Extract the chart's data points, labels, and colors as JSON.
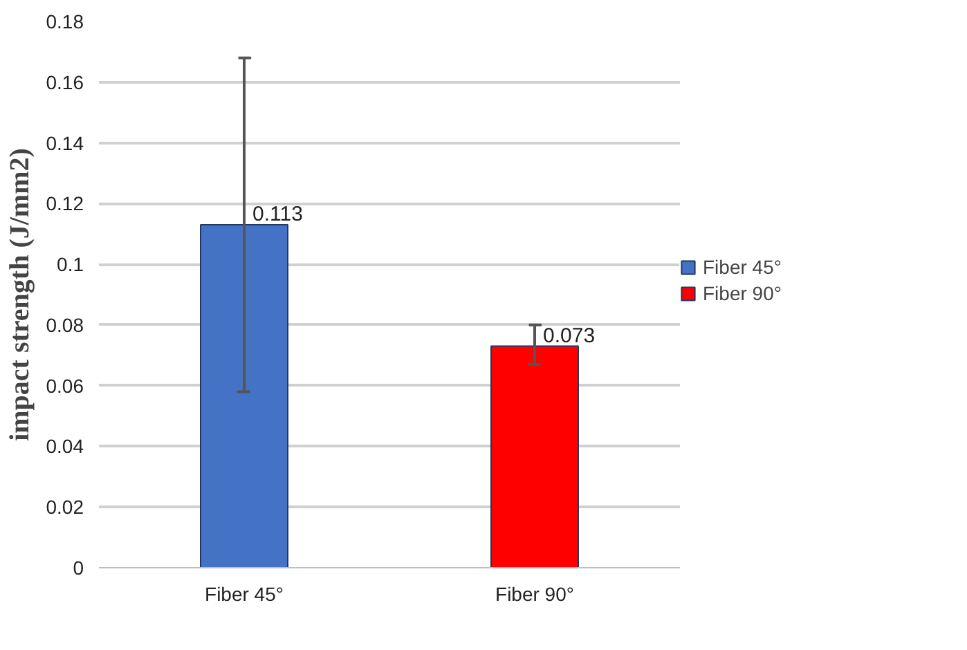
{
  "chart_data": {
    "type": "bar",
    "ylabel": "impact strength (J/mm2)",
    "categories": [
      "Fiber 45°",
      "Fiber 90°"
    ],
    "series": [
      {
        "name": "Fiber 45°",
        "color": "#4472c4",
        "values": [
          0.113,
          null
        ],
        "errors": [
          [
            0.058,
            0.168
          ],
          null
        ]
      },
      {
        "name": "Fiber 90°",
        "color": "#ff0000",
        "values": [
          null,
          0.073
        ],
        "errors": [
          null,
          [
            0.067,
            0.08
          ]
        ]
      }
    ],
    "ylim": [
      0,
      0.18
    ],
    "yticks": [
      0,
      0.02,
      0.04,
      0.06,
      0.08,
      0.1,
      0.12,
      0.14,
      0.16,
      0.18
    ],
    "grid": "y",
    "legend": "right",
    "data_labels": true
  }
}
